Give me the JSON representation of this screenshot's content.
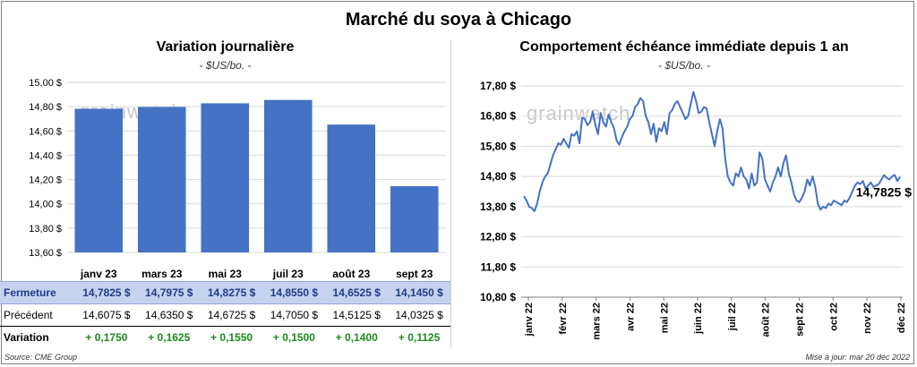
{
  "title": "Marché du soya à Chicago",
  "left": {
    "title": "Variation journalière",
    "unit": "- $US/bo. -",
    "watermark": "grainwatch",
    "row_labels": {
      "close": "Fermeture",
      "prev": "Précédent",
      "var": "Variation"
    },
    "close": [
      "14,7825 $",
      "14,7975 $",
      "14,8275 $",
      "14,8550 $",
      "14,6525 $",
      "14,1450 $"
    ],
    "prev": [
      "14,6075 $",
      "14,6350 $",
      "14,6725 $",
      "14,7050 $",
      "14,5125 $",
      "14,0325 $"
    ],
    "var": [
      "+ 0,1750",
      "+ 0,1625",
      "+ 0,1550",
      "+ 0,1500",
      "+ 0,1400",
      "+ 0,1125"
    ]
  },
  "right": {
    "title": "Comportement échéance immédiate depuis 1 an",
    "unit": "- $US/bo. -",
    "watermark": "grainwatch",
    "last_label": "14,7825 $"
  },
  "source": "Source: CME Group",
  "updated": "Mise à jour: mar 20 déc 2022",
  "colors": {
    "bar": "#4472c4",
    "line": "#4472c4",
    "grid": "#d9d9d9",
    "var": "#1b8a1b"
  },
  "chart_data": [
    {
      "type": "bar",
      "title": "Variation journalière",
      "categories": [
        "janv 23",
        "mars 23",
        "mai 23",
        "juil 23",
        "août 23",
        "sept 23"
      ],
      "values": [
        14.7825,
        14.7975,
        14.8275,
        14.855,
        14.6525,
        14.145
      ],
      "yticks": [
        "15,00 $",
        "14,80 $",
        "14,60 $",
        "14,40 $",
        "14,20 $",
        "14,00 $",
        "13,80 $",
        "13,60 $"
      ],
      "ylim": [
        13.6,
        15.0
      ],
      "grid": true
    },
    {
      "type": "line",
      "title": "Comportement échéance immédiate depuis 1 an",
      "x_labels": [
        "janv 22",
        "févr 22",
        "mars 22",
        "avr 22",
        "mai 22",
        "juin 22",
        "juil 22",
        "août 22",
        "sept 22",
        "oct 22",
        "nov 22",
        "déc 22"
      ],
      "yticks": [
        "17,80 $",
        "16,80 $",
        "15,80 $",
        "14,80 $",
        "13,80 $",
        "12,80 $",
        "11,80 $",
        "10,80 $"
      ],
      "ylim": [
        10.8,
        17.8
      ],
      "grid": true,
      "values": [
        14.15,
        14.0,
        13.8,
        13.75,
        13.65,
        13.9,
        14.3,
        14.6,
        14.8,
        14.9,
        15.2,
        15.5,
        15.7,
        15.9,
        15.85,
        16.05,
        15.9,
        15.75,
        16.2,
        16.15,
        16.3,
        15.9,
        16.75,
        16.7,
        16.5,
        16.6,
        16.95,
        16.5,
        16.2,
        16.9,
        16.6,
        16.45,
        16.85,
        16.6,
        16.4,
        16.0,
        15.85,
        16.1,
        16.3,
        16.45,
        16.7,
        16.8,
        17.1,
        17.2,
        17.4,
        17.3,
        16.8,
        16.6,
        16.2,
        16.55,
        15.95,
        16.4,
        16.3,
        16.6,
        16.2,
        16.9,
        17.0,
        17.2,
        17.3,
        17.1,
        16.9,
        16.7,
        16.8,
        17.2,
        17.6,
        17.3,
        16.9,
        16.95,
        17.1,
        17.05,
        16.6,
        16.2,
        15.8,
        16.3,
        16.7,
        16.4,
        15.4,
        14.8,
        14.6,
        14.5,
        14.9,
        14.8,
        15.1,
        14.8,
        14.7,
        14.4,
        14.9,
        14.5,
        14.6,
        15.6,
        15.4,
        14.7,
        14.5,
        14.3,
        14.6,
        14.8,
        15.1,
        14.8,
        15.25,
        15.5,
        14.9,
        14.6,
        14.2,
        14.0,
        13.95,
        14.1,
        14.3,
        14.7,
        14.5,
        14.8,
        14.45,
        13.9,
        13.7,
        13.8,
        13.75,
        13.9,
        13.85,
        14.0,
        13.95,
        13.9,
        13.85,
        14.0,
        13.95,
        14.1,
        14.3,
        14.5,
        14.6,
        14.55,
        14.65,
        14.4,
        14.5,
        14.6,
        14.45,
        14.5,
        14.55,
        14.7,
        14.85,
        14.75,
        14.7,
        14.8,
        14.85,
        14.65,
        14.7825
      ],
      "last_value": 14.7825
    }
  ]
}
